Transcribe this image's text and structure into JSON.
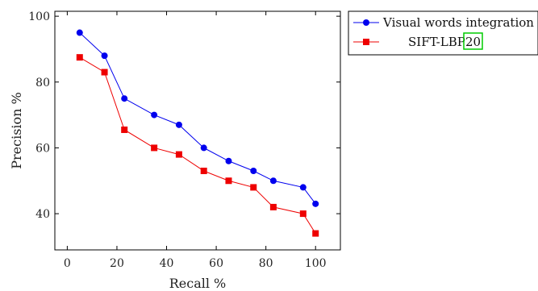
{
  "chart_data": {
    "type": "line",
    "xlabel": "Recall %",
    "ylabel": "Precision %",
    "xlim": [
      -5,
      110
    ],
    "ylim": [
      29,
      101.5
    ],
    "xticks": [
      0,
      20,
      40,
      60,
      80,
      100
    ],
    "yticks": [
      40,
      60,
      80,
      100
    ],
    "grid": false,
    "legend": {
      "placement": "outside-top-right",
      "citation": "20",
      "citation_color": "#00cc00"
    },
    "series": [
      {
        "name": "Visual words integration",
        "color": "#0000ee",
        "marker": "circle",
        "x": [
          5,
          15,
          23,
          35,
          45,
          55,
          65,
          75,
          83,
          95,
          100
        ],
        "y": [
          95,
          88,
          75,
          70,
          67,
          60,
          56,
          53,
          50,
          48,
          43
        ]
      },
      {
        "name": "SIFT-LBP",
        "color": "#ee0000",
        "marker": "square",
        "x": [
          5,
          15,
          23,
          35,
          45,
          55,
          65,
          75,
          83,
          95,
          100
        ],
        "y": [
          87.5,
          83,
          65.5,
          60,
          58,
          53,
          50,
          48,
          42,
          40,
          34
        ]
      }
    ]
  }
}
